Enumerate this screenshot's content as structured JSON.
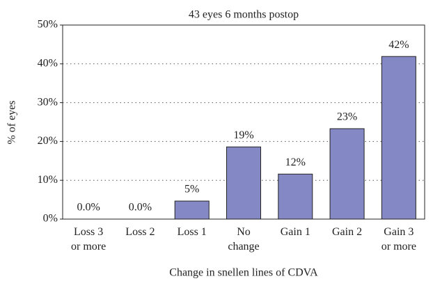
{
  "chart_data": {
    "type": "bar",
    "title": "43 eyes 6 months postop",
    "xlabel": "Change in snellen lines of CDVA",
    "ylabel": "% of eyes",
    "categories": [
      "Loss 3\nor more",
      "Loss 2",
      "Loss 1",
      "No\nchange",
      "Gain 1",
      "Gain 2",
      "Gain 3\nor more"
    ],
    "values": [
      0,
      0,
      4.65,
      18.6,
      11.6,
      23.3,
      41.9
    ],
    "value_labels": [
      "0.0%",
      "0.0%",
      "5%",
      "19%",
      "12%",
      "23%",
      "42%"
    ],
    "color": "#8488c4",
    "ylim": [
      0,
      50
    ],
    "yticks": [
      {
        "value": 0,
        "label": "0%"
      },
      {
        "value": 10,
        "label": "10%"
      },
      {
        "value": 20,
        "label": "20%"
      },
      {
        "value": 30,
        "label": "30%"
      },
      {
        "value": 40,
        "label": "40%"
      },
      {
        "value": 50,
        "label": "50%"
      }
    ],
    "grid": true
  }
}
